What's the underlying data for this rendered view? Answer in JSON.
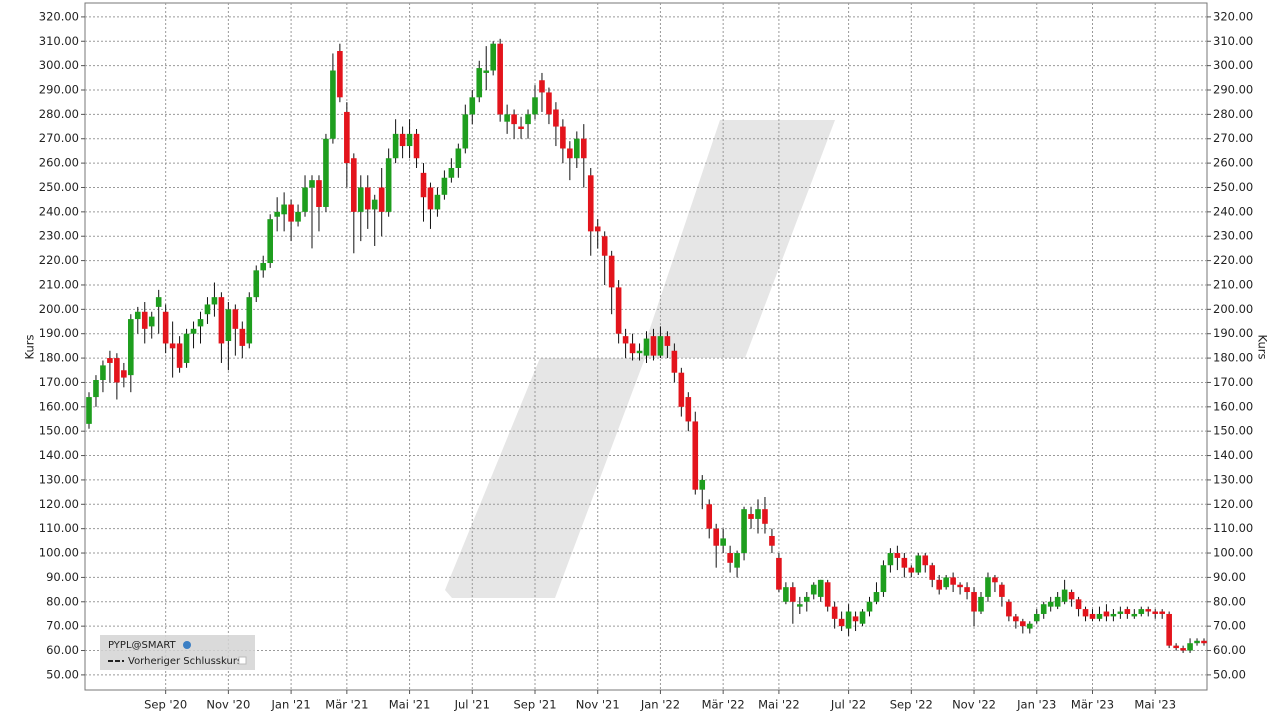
{
  "chart_data": {
    "type": "candlestick",
    "y_label": "Kurs",
    "legend": {
      "symbol": "PYPL@SMART",
      "line": "Vorheriger Schlusskurs"
    },
    "up_color": "#1e9e1e",
    "down_color": "#e3141c",
    "grid": true,
    "ylim": [
      43.8,
      325.7
    ],
    "yticks": [
      {
        "value": 50,
        "label": "50.00"
      },
      {
        "value": 60,
        "label": "60.00"
      },
      {
        "value": 70,
        "label": "70.00"
      },
      {
        "value": 80,
        "label": "80.00"
      },
      {
        "value": 90,
        "label": "90.00"
      },
      {
        "value": 100,
        "label": "100.00"
      },
      {
        "value": 110,
        "label": "110.00"
      },
      {
        "value": 120,
        "label": "120.00"
      },
      {
        "value": 130,
        "label": "130.00"
      },
      {
        "value": 140,
        "label": "140.00"
      },
      {
        "value": 150,
        "label": "150.00"
      },
      {
        "value": 160,
        "label": "160.00"
      },
      {
        "value": 170,
        "label": "170.00"
      },
      {
        "value": 180,
        "label": "180.00"
      },
      {
        "value": 190,
        "label": "190.00"
      },
      {
        "value": 200,
        "label": "200.00"
      },
      {
        "value": 210,
        "label": "210.00"
      },
      {
        "value": 220,
        "label": "220.00"
      },
      {
        "value": 230,
        "label": "230.00"
      },
      {
        "value": 240,
        "label": "240.00"
      },
      {
        "value": 250,
        "label": "250.00"
      },
      {
        "value": 260,
        "label": "260.00"
      },
      {
        "value": 270,
        "label": "270.00"
      },
      {
        "value": 280,
        "label": "280.00"
      },
      {
        "value": 290,
        "label": "290.00"
      },
      {
        "value": 300,
        "label": "300.00"
      },
      {
        "value": 310,
        "label": "310.00"
      },
      {
        "value": 320,
        "label": "320.00"
      }
    ],
    "categories": [
      null,
      null,
      null,
      null,
      null,
      null,
      null,
      null,
      null,
      null,
      null,
      "Sep '20",
      null,
      null,
      null,
      null,
      null,
      null,
      null,
      null,
      "Nov '20",
      null,
      null,
      null,
      null,
      null,
      null,
      null,
      null,
      "Jan '21",
      null,
      null,
      null,
      null,
      null,
      null,
      null,
      "Mär '21",
      null,
      null,
      null,
      null,
      null,
      null,
      null,
      null,
      "Mai '21",
      null,
      null,
      null,
      null,
      null,
      null,
      null,
      null,
      "Jul '21",
      null,
      null,
      null,
      null,
      null,
      null,
      null,
      null,
      "Sep '21",
      null,
      null,
      null,
      null,
      null,
      null,
      null,
      null,
      "Nov '21",
      null,
      null,
      null,
      null,
      null,
      null,
      null,
      null,
      "Jan '22",
      null,
      null,
      null,
      null,
      null,
      null,
      null,
      null,
      "Mär '22",
      null,
      null,
      null,
      null,
      null,
      null,
      null,
      "Mai '22",
      null,
      null,
      null,
      null,
      null,
      null,
      null,
      null,
      null,
      "Jul '22",
      null,
      null,
      null,
      null,
      null,
      null,
      null,
      null,
      "Sep '22",
      null,
      null,
      null,
      null,
      null,
      null,
      null,
      null,
      "Nov '22",
      null,
      null,
      null,
      null,
      null,
      null,
      null,
      null,
      "Jan '23",
      null,
      null,
      null,
      null,
      null,
      null,
      null,
      "Mär '23",
      null,
      null,
      null,
      null,
      null,
      null,
      null,
      null,
      "Mai '23",
      null,
      null,
      null,
      null,
      null,
      null,
      null
    ],
    "candles": [
      [
        153,
        166,
        151,
        164
      ],
      [
        164,
        173,
        160,
        171
      ],
      [
        171,
        179,
        166,
        177
      ],
      [
        180,
        183,
        170,
        178
      ],
      [
        180,
        182,
        163,
        170
      ],
      [
        175,
        178,
        168,
        172
      ],
      [
        173,
        198,
        166,
        196
      ],
      [
        196,
        201,
        190,
        199
      ],
      [
        199,
        203,
        186,
        192
      ],
      [
        193,
        199,
        188,
        197
      ],
      [
        201,
        208,
        190,
        205
      ],
      [
        199,
        202,
        182,
        186
      ],
      [
        186,
        195,
        172,
        184
      ],
      [
        186,
        189,
        174,
        176
      ],
      [
        178,
        192,
        176,
        190
      ],
      [
        190,
        195,
        184,
        192
      ],
      [
        193,
        199,
        186,
        196
      ],
      [
        198,
        205,
        194,
        202
      ],
      [
        202,
        211,
        197,
        205
      ],
      [
        205,
        207,
        178,
        186
      ],
      [
        187,
        203,
        175,
        200
      ],
      [
        200,
        202,
        181,
        192
      ],
      [
        192,
        195,
        180,
        185
      ],
      [
        186,
        207,
        184,
        205
      ],
      [
        205,
        218,
        203,
        216
      ],
      [
        216,
        222,
        213,
        219
      ],
      [
        219,
        239,
        217,
        237
      ],
      [
        238,
        246,
        232,
        240
      ],
      [
        239,
        248,
        232,
        243
      ],
      [
        243,
        245,
        228,
        236
      ],
      [
        236,
        243,
        234,
        240
      ],
      [
        240,
        255,
        238,
        250
      ],
      [
        250,
        255,
        225,
        253
      ],
      [
        253,
        255,
        232,
        242
      ],
      [
        242,
        272,
        240,
        270
      ],
      [
        270,
        305,
        268,
        298
      ],
      [
        306,
        309,
        285,
        287
      ],
      [
        281,
        285,
        250,
        260
      ],
      [
        262,
        264,
        223,
        240
      ],
      [
        240,
        255,
        228,
        250
      ],
      [
        250,
        255,
        233,
        241
      ],
      [
        241,
        247,
        226,
        245
      ],
      [
        250,
        258,
        230,
        240
      ],
      [
        240,
        266,
        238,
        262
      ],
      [
        262,
        278,
        260,
        272
      ],
      [
        272,
        275,
        262,
        267
      ],
      [
        267,
        278,
        262,
        272
      ],
      [
        272,
        274,
        258,
        262
      ],
      [
        256,
        260,
        236,
        246
      ],
      [
        250,
        252,
        233,
        241
      ],
      [
        241,
        250,
        238,
        247
      ],
      [
        247,
        257,
        245,
        254
      ],
      [
        254,
        262,
        252,
        258
      ],
      [
        258,
        268,
        254,
        266
      ],
      [
        266,
        284,
        264,
        280
      ],
      [
        280,
        290,
        276,
        287
      ],
      [
        287,
        302,
        285,
        299
      ],
      [
        297,
        308,
        290,
        298
      ],
      [
        298,
        310,
        296,
        309
      ],
      [
        309,
        311,
        277,
        280
      ],
      [
        277,
        284,
        272,
        280
      ],
      [
        280,
        282,
        270,
        276
      ],
      [
        275,
        279,
        270,
        274
      ],
      [
        276,
        282,
        270,
        280
      ],
      [
        280,
        292,
        278,
        287
      ],
      [
        294,
        297,
        281,
        289
      ],
      [
        289,
        291,
        276,
        280
      ],
      [
        282,
        285,
        267,
        275
      ],
      [
        275,
        278,
        260,
        266
      ],
      [
        266,
        269,
        253,
        262
      ],
      [
        262,
        273,
        258,
        270
      ],
      [
        270,
        276,
        250,
        262
      ],
      [
        255,
        258,
        222,
        232
      ],
      [
        234,
        237,
        225,
        232
      ],
      [
        230,
        232,
        210,
        222
      ],
      [
        222,
        224,
        198,
        209
      ],
      [
        209,
        212,
        186,
        190
      ],
      [
        189,
        192,
        180,
        186
      ],
      [
        186,
        190,
        179,
        182
      ],
      [
        182,
        186,
        179,
        183
      ],
      [
        181,
        191,
        178,
        188
      ],
      [
        189,
        192,
        179,
        181
      ],
      [
        181,
        193,
        180,
        189
      ],
      [
        189,
        191,
        180,
        185
      ],
      [
        183,
        186,
        170,
        174
      ],
      [
        174,
        176,
        156,
        160
      ],
      [
        164,
        166,
        150,
        154
      ],
      [
        154,
        158,
        124,
        126
      ],
      [
        126,
        132,
        118,
        130
      ],
      [
        120,
        122,
        106,
        110
      ],
      [
        110,
        112,
        94,
        103
      ],
      [
        103,
        110,
        100,
        106
      ],
      [
        100,
        103,
        92,
        96
      ],
      [
        94,
        101,
        90,
        100
      ],
      [
        100,
        119,
        97,
        118
      ],
      [
        116,
        119,
        110,
        114
      ],
      [
        114,
        122,
        108,
        118
      ],
      [
        118,
        123,
        108,
        112
      ],
      [
        107,
        110,
        100,
        103
      ],
      [
        98,
        100,
        84,
        85
      ],
      [
        80,
        88,
        79,
        86
      ],
      [
        86,
        88,
        71,
        80
      ],
      [
        78,
        82,
        75,
        79
      ],
      [
        80,
        84,
        76,
        82
      ],
      [
        83,
        88,
        81,
        87
      ],
      [
        82,
        89,
        80,
        89
      ],
      [
        88,
        89,
        76,
        78
      ],
      [
        78,
        80,
        69,
        73
      ],
      [
        73,
        76,
        68,
        70
      ],
      [
        69,
        79,
        66,
        76
      ],
      [
        74,
        76,
        68,
        72
      ],
      [
        71,
        77,
        70,
        76
      ],
      [
        76,
        82,
        74,
        80
      ],
      [
        80,
        88,
        79,
        84
      ],
      [
        84,
        97,
        82,
        95
      ],
      [
        95,
        102,
        92,
        100
      ],
      [
        100,
        103,
        93,
        98
      ],
      [
        98,
        100,
        90,
        94
      ],
      [
        94,
        95,
        90,
        92
      ],
      [
        92,
        100,
        91,
        99
      ],
      [
        99,
        100,
        92,
        95
      ],
      [
        95,
        96,
        86,
        89
      ],
      [
        89,
        91,
        83,
        85
      ],
      [
        86,
        91,
        85,
        90
      ],
      [
        90,
        92,
        84,
        87
      ],
      [
        87,
        88,
        83,
        86
      ],
      [
        86,
        88,
        81,
        84
      ],
      [
        84,
        86,
        70,
        76
      ],
      [
        76,
        84,
        75,
        82
      ],
      [
        82,
        92,
        80,
        90
      ],
      [
        90,
        91,
        84,
        88
      ],
      [
        87,
        88,
        78,
        82
      ],
      [
        80,
        81,
        72,
        74
      ],
      [
        74,
        75,
        69,
        72
      ],
      [
        72,
        73,
        67,
        70
      ],
      [
        69,
        72,
        67,
        71
      ],
      [
        72,
        77,
        71,
        75
      ],
      [
        75,
        80,
        73,
        79
      ],
      [
        78,
        82,
        76,
        80
      ],
      [
        78,
        84,
        77,
        82
      ],
      [
        80,
        89,
        79,
        85
      ],
      [
        84,
        85,
        78,
        81
      ],
      [
        81,
        82,
        74,
        77
      ],
      [
        77,
        78,
        72,
        74
      ],
      [
        75,
        77,
        72,
        73
      ],
      [
        73,
        78,
        72,
        75
      ],
      [
        76,
        79,
        72,
        74
      ],
      [
        74,
        77,
        72,
        75
      ],
      [
        75,
        78,
        73,
        76
      ],
      [
        77,
        78,
        73,
        75
      ],
      [
        74,
        77,
        73,
        75
      ],
      [
        75,
        78,
        74,
        77
      ],
      [
        77,
        78,
        74,
        76
      ],
      [
        76,
        77,
        73,
        75
      ],
      [
        76,
        77,
        73,
        75
      ],
      [
        75,
        76,
        61,
        62
      ],
      [
        62,
        63,
        60,
        61
      ],
      [
        61,
        62,
        59,
        60
      ],
      [
        60,
        65,
        59,
        63
      ],
      [
        63,
        65,
        62,
        64
      ],
      [
        64,
        65,
        62,
        63
      ]
    ]
  }
}
